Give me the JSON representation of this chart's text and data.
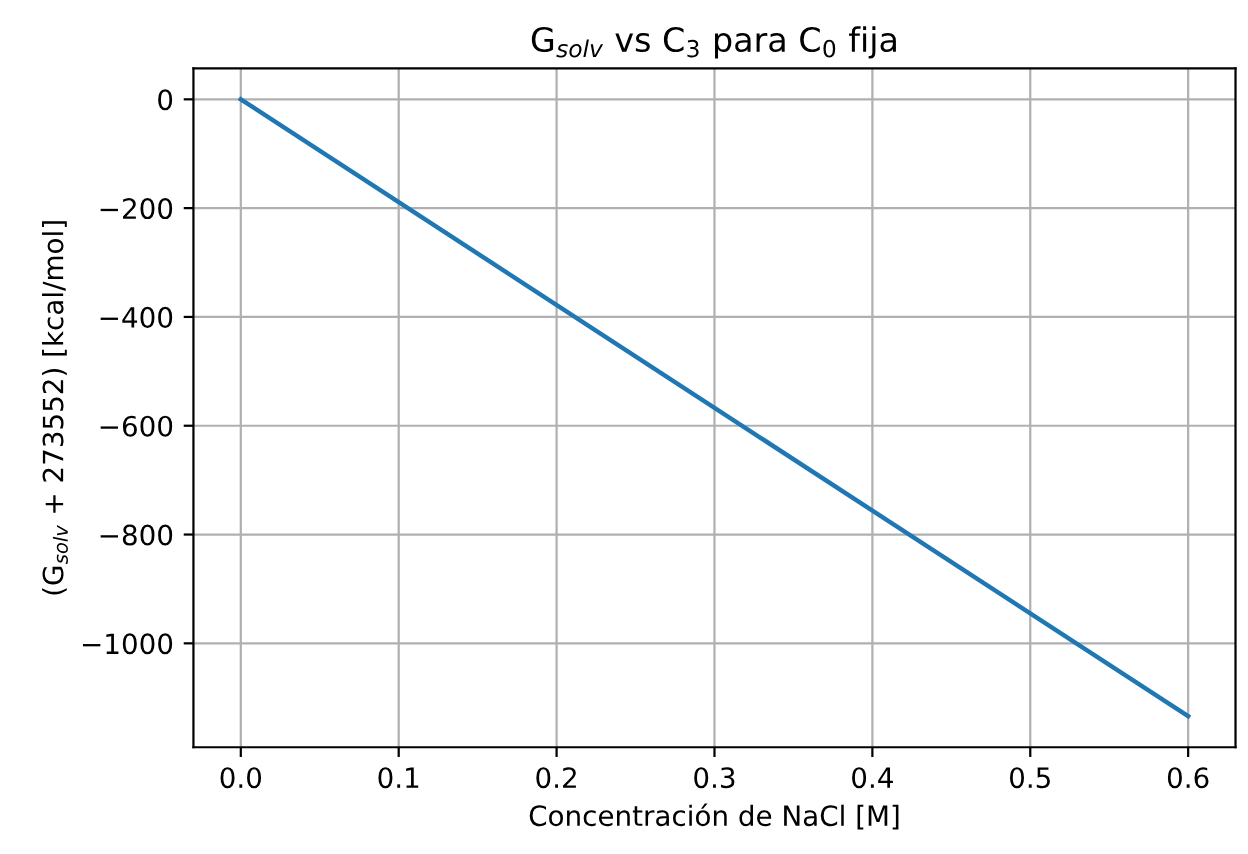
{
  "chart_data": {
    "type": "line",
    "title": "G$_{solv}$ vs C$_{3}$ para C$_{0}$ fija",
    "xlabel": "Concentración de NaCl [M]",
    "ylabel": "(G$_{solv}$ + 273552) [kcal/mol]",
    "x": [
      0.0,
      0.6
    ],
    "series": [
      {
        "color": "#1f77b4",
        "values": [
          0,
          -1134
        ]
      }
    ],
    "xlim": [
      -0.03,
      0.63
    ],
    "xticks": [
      {
        "value": 0,
        "label": "0.0"
      },
      0.1,
      0.2,
      0.3,
      0.4,
      0.5,
      0.6
    ],
    "ylim": [
      -1191,
      57
    ],
    "yticks": [
      {
        "value": -1000,
        "label": "−1000"
      },
      {
        "value": -800,
        "label": "−800"
      },
      {
        "value": -600,
        "label": "−600"
      },
      {
        "value": -400,
        "label": "−400"
      },
      {
        "value": -200,
        "label": "−200"
      },
      0
    ],
    "grid": true,
    "marker": "none",
    "line_style": "solid"
  }
}
